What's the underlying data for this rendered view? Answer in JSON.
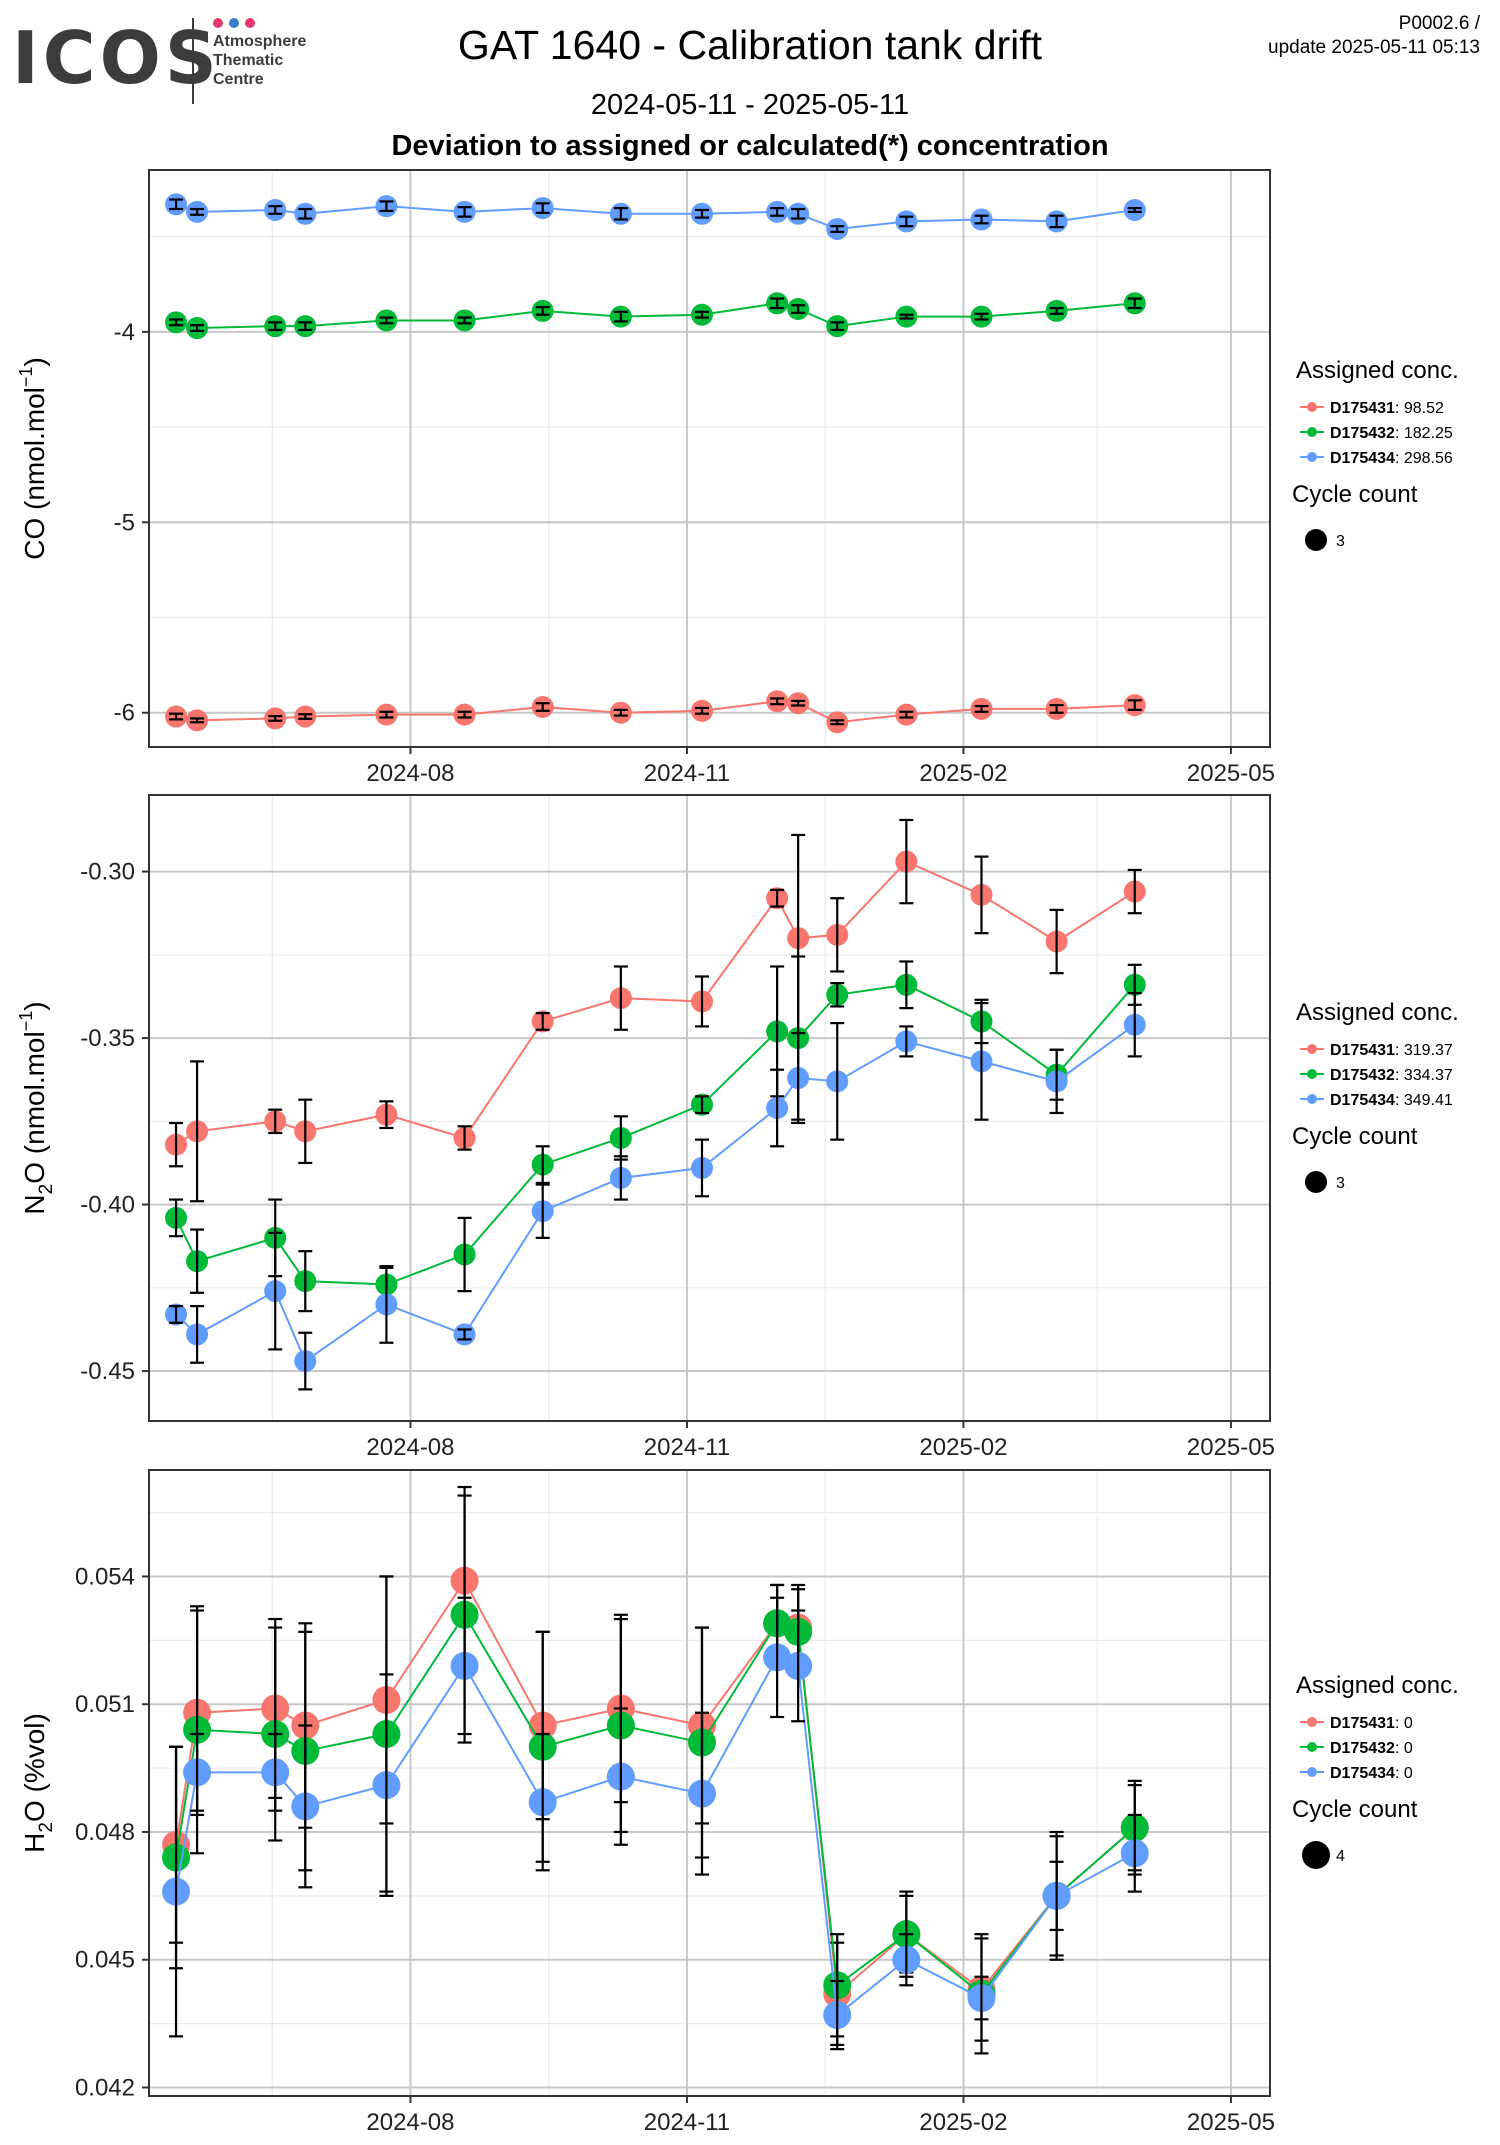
{
  "logo": {
    "word": "ICOS",
    "lines": [
      "Atmosphere",
      "Thematic",
      "Centre"
    ],
    "dot_colors": [
      "#e63a6f",
      "#3d7fce",
      "#e63a6f"
    ]
  },
  "header": {
    "title": "GAT 1640 - Calibration tank drift",
    "date_range": "2024-05-11 - 2025-05-11",
    "subtitle": "Deviation to assigned or calculated(*) concentration",
    "code": "P0002.6 /",
    "update": "update  2025-05-11 05:13"
  },
  "colors": {
    "red": "#f8766d",
    "green": "#00ba38",
    "blue": "#619cff",
    "grid_major": "#c8c8c8",
    "grid_minor": "#ebebeb"
  },
  "chart_data": [
    {
      "type": "scatter",
      "name": "CO",
      "ylabel_main": "CO (nmol.mol",
      "ylabel_sup": "−1",
      "ylabel_end": ")",
      "x_ticks": [
        "2024-08",
        "2024-11",
        "2025-02",
        "2025-05"
      ],
      "xlim": [
        "2024-05-06",
        "2025-05-14"
      ],
      "ylim": [
        -6.18,
        -3.15
      ],
      "y_ticks": [
        -6,
        -5,
        -4
      ],
      "y_tick_labels": [
        "-6",
        "-5",
        "-4"
      ],
      "grid": true,
      "legend_title": "Assigned conc.",
      "cycle_title": "Cycle count",
      "cycle_value": "3",
      "x": [
        "2024-05-15",
        "2024-05-22",
        "2024-06-17",
        "2024-06-27",
        "2024-07-24",
        "2024-08-19",
        "2024-09-14",
        "2024-10-10",
        "2024-11-06",
        "2024-12-01",
        "2024-12-08",
        "2024-12-21",
        "2025-01-13",
        "2025-02-07",
        "2025-03-04",
        "2025-03-30"
      ],
      "series": [
        {
          "name": "D175431",
          "value": "98.52",
          "color": "#f8766d",
          "marker_size": 3,
          "y": [
            -6.02,
            -6.04,
            -6.03,
            -6.02,
            -6.01,
            -6.01,
            -5.97,
            -6.0,
            -5.99,
            -5.94,
            -5.95,
            -6.05,
            -6.01,
            -5.98,
            -5.98,
            -5.96
          ],
          "err": [
            0.015,
            0.01,
            0.012,
            0.012,
            0.015,
            0.015,
            0.02,
            0.015,
            0.015,
            0.015,
            0.012,
            0.01,
            0.015,
            0.015,
            0.02,
            0.025
          ]
        },
        {
          "name": "D175432",
          "value": "182.25",
          "color": "#00ba38",
          "marker_size": 3,
          "y": [
            -3.95,
            -3.98,
            -3.97,
            -3.97,
            -3.94,
            -3.94,
            -3.89,
            -3.92,
            -3.91,
            -3.85,
            -3.88,
            -3.97,
            -3.92,
            -3.92,
            -3.89,
            -3.85
          ],
          "err": [
            0.015,
            0.015,
            0.02,
            0.02,
            0.015,
            0.015,
            0.02,
            0.025,
            0.015,
            0.025,
            0.02,
            0.02,
            0.01,
            0.015,
            0.015,
            0.025
          ]
        },
        {
          "name": "D175434",
          "value": "298.56",
          "color": "#619cff",
          "marker_size": 3,
          "y": [
            -3.33,
            -3.37,
            -3.36,
            -3.38,
            -3.34,
            -3.37,
            -3.35,
            -3.38,
            -3.38,
            -3.37,
            -3.38,
            -3.46,
            -3.42,
            -3.41,
            -3.42,
            -3.36
          ],
          "err": [
            0.025,
            0.015,
            0.02,
            0.025,
            0.025,
            0.025,
            0.025,
            0.03,
            0.02,
            0.02,
            0.025,
            0.015,
            0.025,
            0.02,
            0.03,
            0.01
          ]
        }
      ]
    },
    {
      "type": "scatter",
      "name": "N2O",
      "ylabel_main": "N",
      "ylabel_sub": "2",
      "ylabel_mid": "O (nmol.mol",
      "ylabel_sup": "−1",
      "ylabel_end": ")",
      "x_ticks": [
        "2024-08",
        "2024-11",
        "2025-02",
        "2025-05"
      ],
      "xlim": [
        "2024-05-06",
        "2025-05-14"
      ],
      "ylim": [
        -0.465,
        -0.277
      ],
      "y_ticks": [
        -0.45,
        -0.4,
        -0.35,
        -0.3
      ],
      "y_tick_labels": [
        "-0.45",
        "-0.40",
        "-0.35",
        "-0.30"
      ],
      "grid": true,
      "legend_title": "Assigned conc.",
      "cycle_title": "Cycle count",
      "cycle_value": "3",
      "x": [
        "2024-05-15",
        "2024-05-22",
        "2024-06-17",
        "2024-06-27",
        "2024-07-24",
        "2024-08-19",
        "2024-09-14",
        "2024-10-10",
        "2024-11-06",
        "2024-12-01",
        "2024-12-08",
        "2024-12-21",
        "2025-01-13",
        "2025-02-07",
        "2025-03-04",
        "2025-03-30"
      ],
      "series": [
        {
          "name": "D175431",
          "value": "319.37",
          "color": "#f8766d",
          "marker_size": 3,
          "y": [
            -0.382,
            -0.378,
            -0.375,
            -0.378,
            -0.373,
            -0.38,
            -0.345,
            -0.338,
            -0.339,
            -0.308,
            -0.32,
            -0.319,
            -0.297,
            -0.307,
            -0.321,
            -0.306
          ],
          "err": [
            0.0065,
            0.021,
            0.0035,
            0.0095,
            0.004,
            0.0035,
            0.0025,
            0.0095,
            0.0075,
            0.0025,
            0.031,
            0.011,
            0.0125,
            0.0115,
            0.0095,
            0.0065
          ]
        },
        {
          "name": "D175432",
          "value": "334.37",
          "color": "#00ba38",
          "marker_size": 3,
          "y": [
            -0.404,
            -0.417,
            -0.41,
            -0.423,
            -0.424,
            -0.415,
            -0.388,
            -0.38,
            -0.37,
            -0.348,
            -0.35,
            -0.337,
            -0.334,
            -0.345,
            -0.361,
            -0.334
          ],
          "err": [
            0.0055,
            0.0095,
            0.0115,
            0.009,
            0.005,
            0.011,
            0.0055,
            0.0065,
            0.0025,
            0.0195,
            0.0245,
            0.0035,
            0.007,
            0.0065,
            0.0075,
            0.006
          ]
        },
        {
          "name": "D175434",
          "value": "349.41",
          "color": "#619cff",
          "marker_size": 3,
          "y": [
            -0.433,
            -0.439,
            -0.426,
            -0.447,
            -0.43,
            -0.439,
            -0.402,
            -0.392,
            -0.389,
            -0.371,
            -0.362,
            -0.363,
            -0.351,
            -0.357,
            -0.363,
            -0.346
          ],
          "err": [
            0.0025,
            0.0085,
            0.0175,
            0.0085,
            0.0115,
            0.0015,
            0.008,
            0.0065,
            0.0085,
            0.0115,
            0.0135,
            0.0175,
            0.0045,
            0.0175,
            0.0095,
            0.0095
          ]
        }
      ]
    },
    {
      "type": "scatter",
      "name": "H2O",
      "ylabel_main": "H",
      "ylabel_sub": "2",
      "ylabel_mid": "O (%vol)",
      "x_ticks": [
        "2024-08",
        "2024-11",
        "2025-02",
        "2025-05"
      ],
      "xlim": [
        "2024-05-06",
        "2025-05-14"
      ],
      "ylim": [
        0.0418,
        0.0565
      ],
      "y_ticks": [
        0.042,
        0.045,
        0.048,
        0.051,
        0.054
      ],
      "y_tick_labels": [
        "0.042",
        "0.045",
        "0.048",
        "0.051",
        "0.054"
      ],
      "grid": true,
      "legend_title": "Assigned conc.",
      "cycle_title": "Cycle count",
      "cycle_value": "4",
      "x": [
        "2024-05-15",
        "2024-05-22",
        "2024-06-17",
        "2024-06-27",
        "2024-07-24",
        "2024-08-19",
        "2024-09-14",
        "2024-10-10",
        "2024-11-06",
        "2024-12-01",
        "2024-12-08",
        "2024-12-21",
        "2025-01-13",
        "2025-02-07",
        "2025-03-04",
        "2025-03-30"
      ],
      "series": [
        {
          "name": "D175431",
          "value": "0",
          "color": "#f8766d",
          "marker_size": 4,
          "y": [
            0.0477,
            0.0508,
            0.0509,
            0.0505,
            0.0511,
            0.0539,
            0.0505,
            0.0509,
            0.0505,
            0.0529,
            0.0528,
            0.0442,
            0.0456,
            0.0443,
            0.0465,
            0.0481
          ],
          "err": [
            0.0023,
            0.0024,
            0.0021,
            0.0024,
            0.0029,
            0.002,
            0.0022,
            0.0022,
            0.0023,
            0.0009,
            0.001,
            0.0012,
            0.0009,
            0.0012,
            0.0015,
            0.001
          ]
        },
        {
          "name": "D175432",
          "value": "0",
          "color": "#00ba38",
          "marker_size": 4,
          "y": [
            0.0474,
            0.0504,
            0.0503,
            0.0499,
            0.0503,
            0.0531,
            0.05,
            0.0505,
            0.0501,
            0.0529,
            0.0527,
            0.0444,
            0.0456,
            0.0442,
            0.0465,
            0.0481
          ],
          "err": [
            0.0026,
            0.0029,
            0.0025,
            0.0028,
            0.0037,
            0.003,
            0.0027,
            0.0025,
            0.0027,
            0.0009,
            0.001,
            0.0012,
            0.001,
            0.0014,
            0.0014,
            0.0011
          ]
        },
        {
          "name": "D175434",
          "value": "0",
          "color": "#619cff",
          "marker_size": 4,
          "y": [
            0.0466,
            0.0494,
            0.0494,
            0.0486,
            0.0491,
            0.0519,
            0.0487,
            0.0493,
            0.0489,
            0.0521,
            0.0519,
            0.0437,
            0.045,
            0.0441,
            0.0465,
            0.0475
          ],
          "err": [
            0.0034,
            0.0009,
            0.0009,
            0.0019,
            0.0026,
            0.0016,
            0.0016,
            0.0016,
            0.0019,
            0.0014,
            0.0013,
            0.0008,
            0.0006,
            0.0005,
            0.0008,
            0.0009
          ]
        }
      ]
    }
  ]
}
